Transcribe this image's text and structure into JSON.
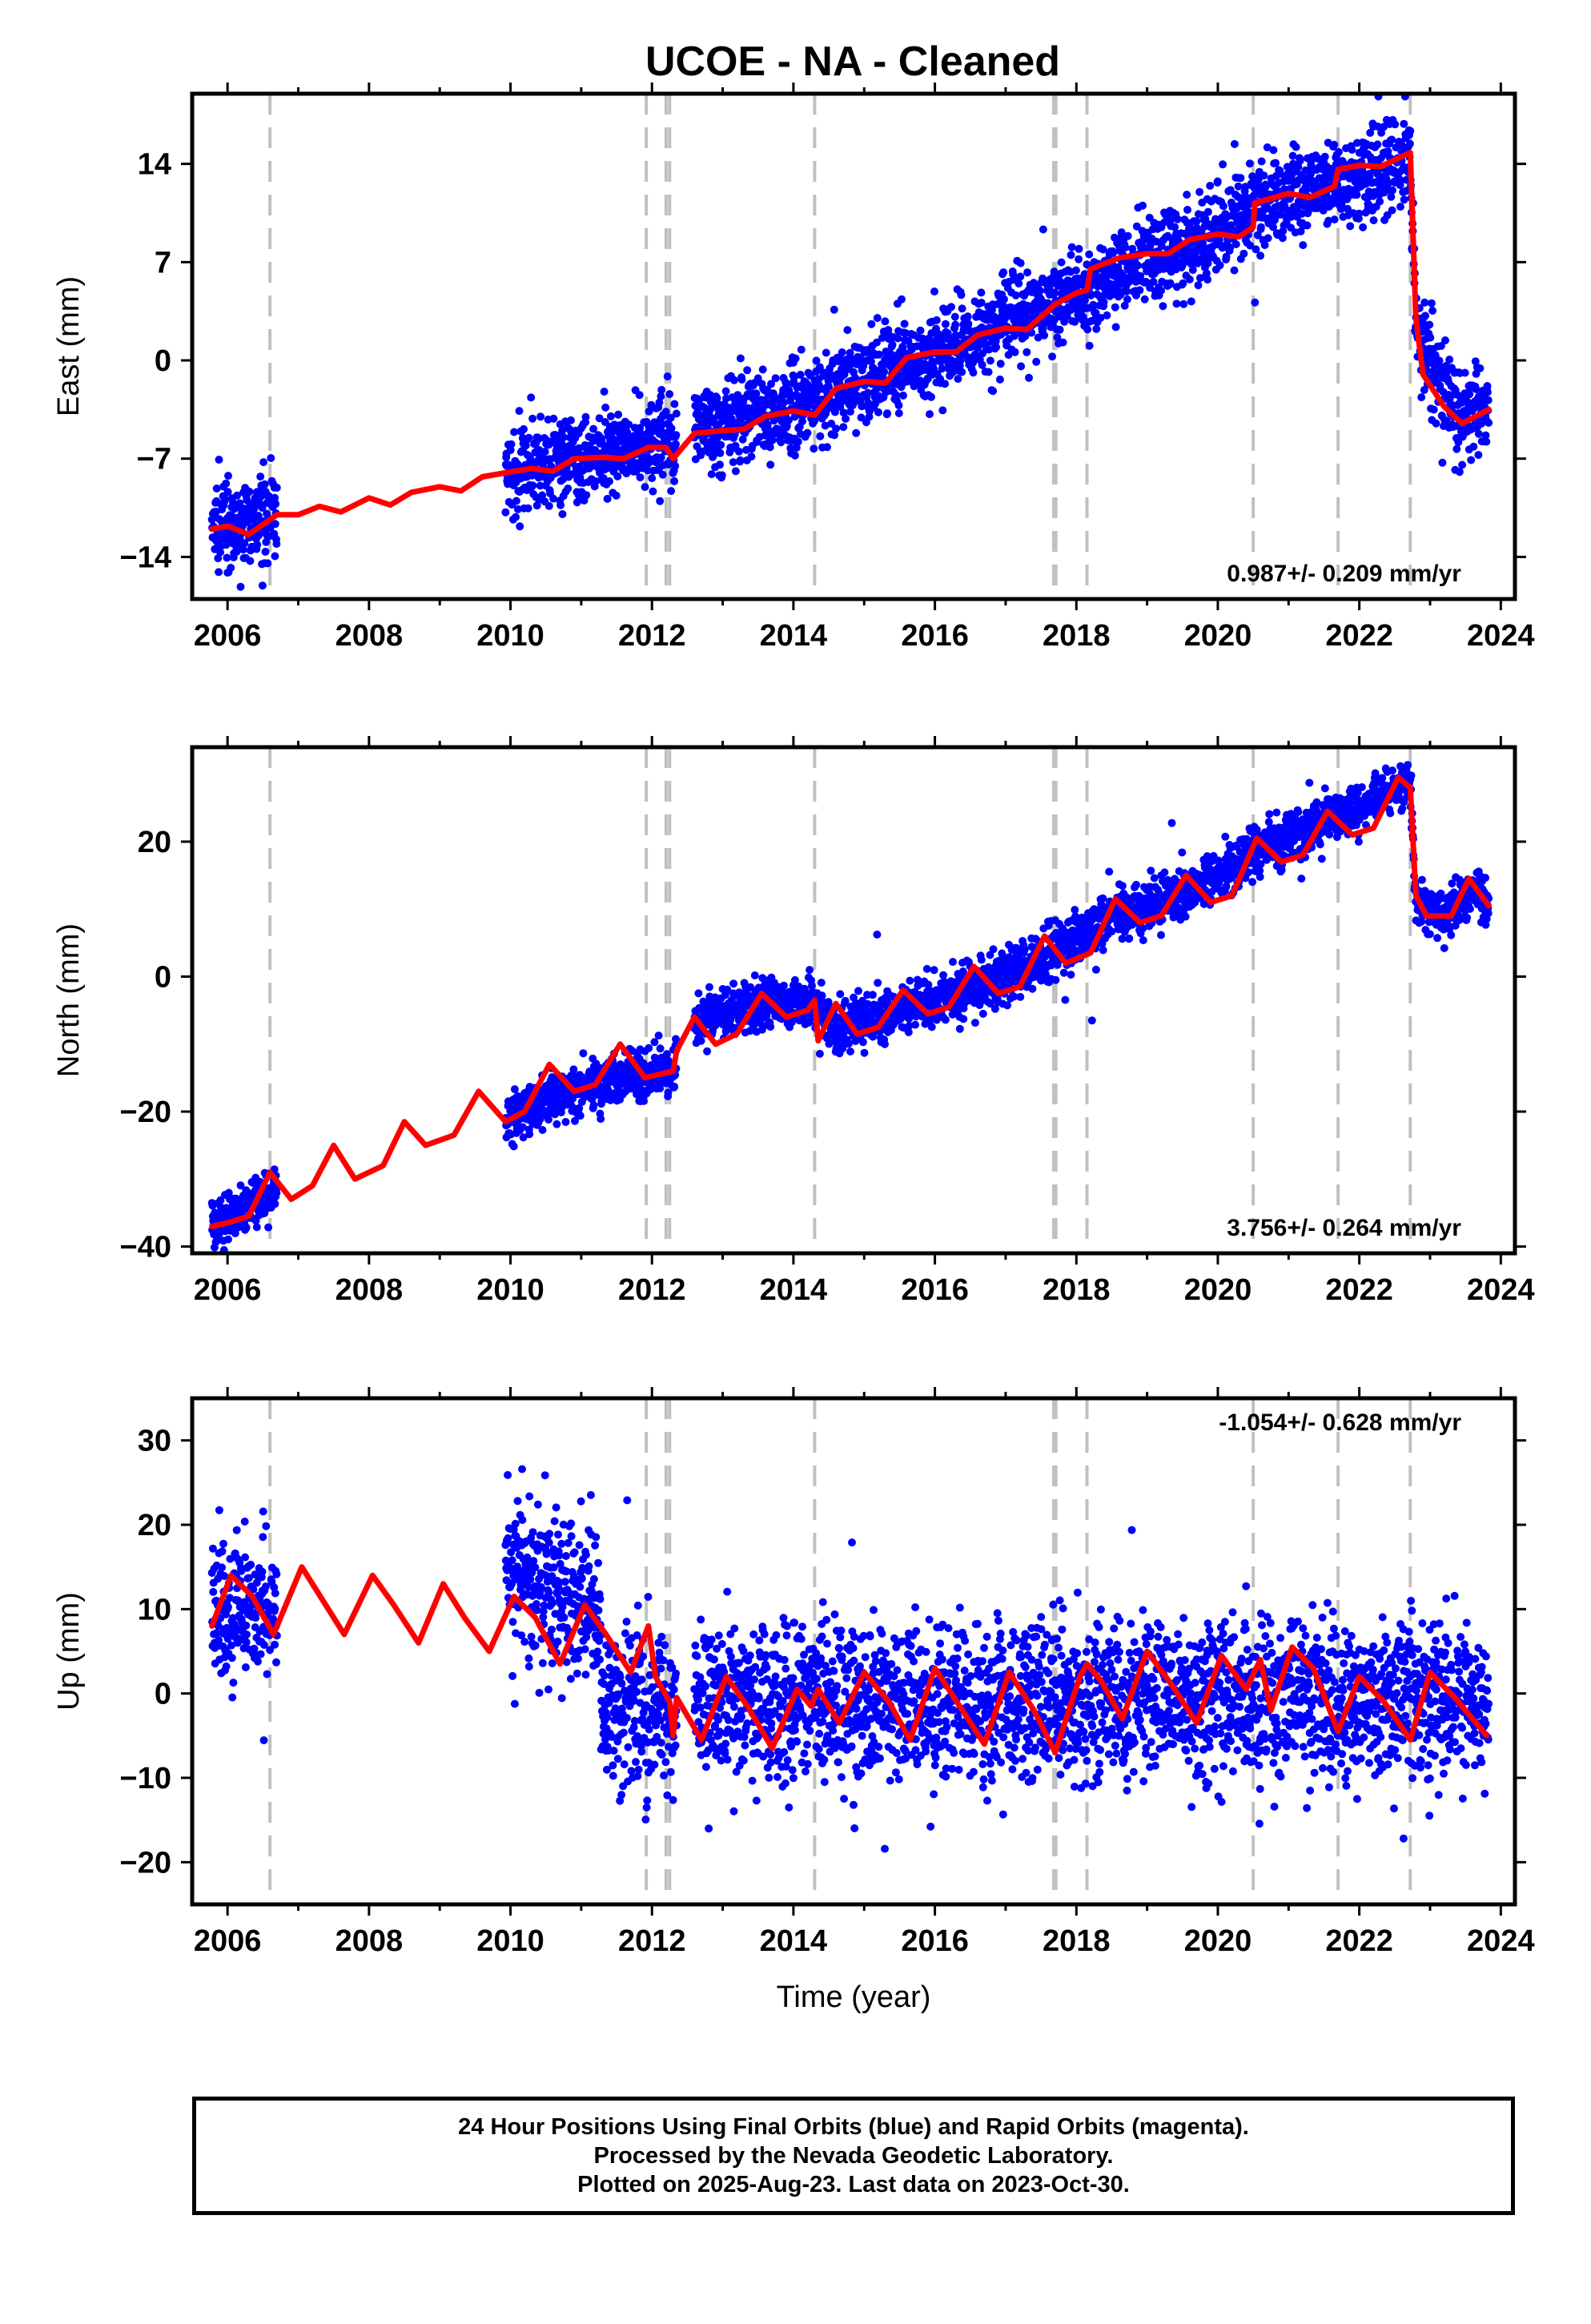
{
  "title": "UCOE  - NA - Cleaned",
  "chart_data": [
    {
      "type": "scatter",
      "panel": "east",
      "ylabel": "East (mm)",
      "xlabel": "",
      "xlim": [
        2005.5,
        2024.2
      ],
      "ylim": [
        -17,
        19
      ],
      "xticks": [
        2006,
        2008,
        2010,
        2012,
        2014,
        2016,
        2018,
        2020,
        2022,
        2024
      ],
      "yticks": [
        -14,
        -7,
        0,
        7,
        14
      ],
      "rate_label": "0.987+/- 0.209 mm/yr",
      "rate_position": "bottom-right",
      "series": [
        {
          "label": "Final Orbits (blue)",
          "color": "#0000ff",
          "style": "points",
          "segments": [
            [
              2005.78,
              2006.7
            ],
            [
              2009.93,
              2012.35
            ],
            [
              2012.6,
              2023.83
            ]
          ],
          "base_at": [
            [
              2005.78,
              -12
            ],
            [
              2006.6,
              -11
            ],
            [
              2009.93,
              -8
            ],
            [
              2012.0,
              -6
            ],
            [
              2012.6,
              -5
            ],
            [
              2014.0,
              -3.5
            ],
            [
              2016.0,
              0.5
            ],
            [
              2018.0,
              4.8
            ],
            [
              2020.0,
              9
            ],
            [
              2020.5,
              11
            ],
            [
              2022.0,
              13
            ],
            [
              2022.72,
              14.5
            ],
            [
              2022.8,
              2
            ],
            [
              2023.4,
              -4
            ],
            [
              2023.83,
              -3.5
            ]
          ],
          "noise_mm": 1.5
        },
        {
          "label": "Model fit",
          "color": "#ff0000",
          "style": "line",
          "points": [
            [
              2005.78,
              -12.0
            ],
            [
              2006.0,
              -11.8
            ],
            [
              2006.3,
              -12.4
            ],
            [
              2006.7,
              -11.0
            ],
            [
              2007.0,
              -11.0
            ],
            [
              2007.3,
              -10.4
            ],
            [
              2007.6,
              -10.8
            ],
            [
              2008.0,
              -9.8
            ],
            [
              2008.3,
              -10.3
            ],
            [
              2008.6,
              -9.4
            ],
            [
              2009.0,
              -9.0
            ],
            [
              2009.3,
              -9.3
            ],
            [
              2009.6,
              -8.3
            ],
            [
              2009.93,
              -8.0
            ],
            [
              2010.3,
              -7.7
            ],
            [
              2010.6,
              -7.9
            ],
            [
              2010.9,
              -7.0
            ],
            [
              2011.3,
              -6.9
            ],
            [
              2011.6,
              -7.0
            ],
            [
              2011.95,
              -6.2
            ],
            [
              2012.2,
              -6.2
            ],
            [
              2012.3,
              -7.0
            ],
            [
              2012.6,
              -5.2
            ],
            [
              2013.0,
              -5.0
            ],
            [
              2013.3,
              -4.9
            ],
            [
              2013.6,
              -4.0
            ],
            [
              2014.0,
              -3.6
            ],
            [
              2014.3,
              -3.9
            ],
            [
              2014.6,
              -2.0
            ],
            [
              2015.0,
              -1.5
            ],
            [
              2015.3,
              -1.6
            ],
            [
              2015.6,
              0.2
            ],
            [
              2016.0,
              0.6
            ],
            [
              2016.3,
              0.6
            ],
            [
              2016.6,
              1.8
            ],
            [
              2017.0,
              2.3
            ],
            [
              2017.3,
              2.2
            ],
            [
              2017.7,
              4.0
            ],
            [
              2018.0,
              4.8
            ],
            [
              2018.15,
              5.0
            ],
            [
              2018.2,
              6.5
            ],
            [
              2018.6,
              7.3
            ],
            [
              2019.0,
              7.6
            ],
            [
              2019.3,
              7.6
            ],
            [
              2019.6,
              8.6
            ],
            [
              2020.0,
              9.0
            ],
            [
              2020.3,
              8.8
            ],
            [
              2020.5,
              9.5
            ],
            [
              2020.52,
              11.2
            ],
            [
              2021.0,
              11.9
            ],
            [
              2021.3,
              11.6
            ],
            [
              2021.65,
              12.4
            ],
            [
              2021.7,
              13.6
            ],
            [
              2022.0,
              13.9
            ],
            [
              2022.3,
              13.8
            ],
            [
              2022.72,
              14.8
            ],
            [
              2022.8,
              3.0
            ],
            [
              2022.9,
              -1.0
            ],
            [
              2023.2,
              -3.3
            ],
            [
              2023.45,
              -4.5
            ],
            [
              2023.83,
              -3.5
            ]
          ]
        }
      ]
    },
    {
      "type": "scatter",
      "panel": "north",
      "ylabel": "North (mm)",
      "xlabel": "",
      "xlim": [
        2005.5,
        2024.2
      ],
      "ylim": [
        -41,
        34
      ],
      "xticks": [
        2006,
        2008,
        2010,
        2012,
        2014,
        2016,
        2018,
        2020,
        2022,
        2024
      ],
      "yticks": [
        -40,
        -20,
        0,
        20
      ],
      "rate_label": "3.756+/- 0.264 mm/yr",
      "rate_position": "bottom-right",
      "series": [
        {
          "label": "Final Orbits (blue)",
          "color": "#0000ff",
          "style": "points",
          "segments": [
            [
              2005.78,
              2006.7
            ],
            [
              2009.93,
              2012.35
            ],
            [
              2012.6,
              2023.83
            ]
          ],
          "base_at": [
            [
              2005.78,
              -37
            ],
            [
              2006.7,
              -32
            ],
            [
              2009.93,
              -21
            ],
            [
              2011.0,
              -16
            ],
            [
              2012.3,
              -14
            ],
            [
              2012.6,
              -7
            ],
            [
              2013.5,
              -4
            ],
            [
              2014.3,
              -4
            ],
            [
              2014.6,
              -8
            ],
            [
              2015.5,
              -5
            ],
            [
              2016.5,
              -2
            ],
            [
              2017.6,
              3
            ],
            [
              2018.5,
              9
            ],
            [
              2019.5,
              12
            ],
            [
              2020.5,
              18
            ],
            [
              2021.5,
              23
            ],
            [
              2022.72,
              29
            ],
            [
              2022.8,
              11
            ],
            [
              2023.2,
              9
            ],
            [
              2023.6,
              13
            ],
            [
              2023.83,
              10
            ]
          ],
          "noise_mm": 1.8
        },
        {
          "label": "Model fit",
          "color": "#ff0000",
          "style": "line",
          "points": [
            [
              2005.78,
              -37.0
            ],
            [
              2006.0,
              -36.5
            ],
            [
              2006.3,
              -35.5
            ],
            [
              2006.6,
              -29.0
            ],
            [
              2006.9,
              -33.0
            ],
            [
              2007.2,
              -31.0
            ],
            [
              2007.5,
              -25.0
            ],
            [
              2007.8,
              -30.0
            ],
            [
              2008.2,
              -28.0
            ],
            [
              2008.5,
              -21.5
            ],
            [
              2008.8,
              -25.0
            ],
            [
              2009.2,
              -23.5
            ],
            [
              2009.55,
              -17.0
            ],
            [
              2009.93,
              -21.5
            ],
            [
              2010.2,
              -20.0
            ],
            [
              2010.55,
              -13.0
            ],
            [
              2010.9,
              -17.0
            ],
            [
              2011.2,
              -16.0
            ],
            [
              2011.55,
              -10.0
            ],
            [
              2011.9,
              -15.0
            ],
            [
              2012.3,
              -14.0
            ],
            [
              2012.35,
              -11.0
            ],
            [
              2012.6,
              -6.0
            ],
            [
              2012.9,
              -10.0
            ],
            [
              2013.2,
              -8.5
            ],
            [
              2013.55,
              -2.5
            ],
            [
              2013.9,
              -6.0
            ],
            [
              2014.2,
              -5.0
            ],
            [
              2014.3,
              -3.5
            ],
            [
              2014.35,
              -9.5
            ],
            [
              2014.6,
              -4.0
            ],
            [
              2014.9,
              -8.5
            ],
            [
              2015.2,
              -7.5
            ],
            [
              2015.55,
              -2.0
            ],
            [
              2015.9,
              -5.5
            ],
            [
              2016.2,
              -4.5
            ],
            [
              2016.55,
              1.5
            ],
            [
              2016.9,
              -2.5
            ],
            [
              2017.2,
              -1.5
            ],
            [
              2017.55,
              6.0
            ],
            [
              2017.85,
              2.0
            ],
            [
              2018.2,
              3.5
            ],
            [
              2018.55,
              11.5
            ],
            [
              2018.9,
              8.0
            ],
            [
              2019.2,
              9.0
            ],
            [
              2019.55,
              15.0
            ],
            [
              2019.9,
              11.0
            ],
            [
              2020.2,
              12.0
            ],
            [
              2020.55,
              20.5
            ],
            [
              2020.9,
              17.0
            ],
            [
              2021.2,
              18.0
            ],
            [
              2021.55,
              24.5
            ],
            [
              2021.9,
              21.0
            ],
            [
              2022.2,
              22.0
            ],
            [
              2022.55,
              29.5
            ],
            [
              2022.72,
              28.0
            ],
            [
              2022.8,
              12.0
            ],
            [
              2022.95,
              9.0
            ],
            [
              2023.3,
              9.0
            ],
            [
              2023.55,
              14.5
            ],
            [
              2023.83,
              10.5
            ]
          ]
        }
      ]
    },
    {
      "type": "scatter",
      "panel": "up",
      "ylabel": "Up (mm)",
      "xlabel": "Time (year)",
      "xlim": [
        2005.5,
        2024.2
      ],
      "ylim": [
        -25,
        35
      ],
      "xticks": [
        2006,
        2008,
        2010,
        2012,
        2014,
        2016,
        2018,
        2020,
        2022,
        2024
      ],
      "yticks": [
        -20,
        -10,
        0,
        10,
        20,
        30
      ],
      "rate_label": "-1.054+/- 0.628 mm/yr",
      "rate_position": "top-right",
      "series": [
        {
          "label": "Final Orbits (blue)",
          "color": "#0000ff",
          "style": "points",
          "segments": [
            [
              2005.78,
              2006.7
            ],
            [
              2009.93,
              2011.2
            ],
            [
              2011.2,
              2012.35
            ],
            [
              2012.6,
              2023.83
            ]
          ],
          "base_at": [
            [
              2005.78,
              10
            ],
            [
              2006.7,
              10
            ],
            [
              2009.93,
              15
            ],
            [
              2011.2,
              10
            ],
            [
              2011.3,
              -2
            ],
            [
              2012.35,
              -2
            ],
            [
              2012.6,
              -1
            ],
            [
              2023.83,
              -1
            ]
          ],
          "noise_mm": 4.5
        },
        {
          "label": "Model fit",
          "color": "#ff0000",
          "style": "line",
          "points": [
            [
              2005.78,
              8.0
            ],
            [
              2006.05,
              14.0
            ],
            [
              2006.35,
              11.5
            ],
            [
              2006.65,
              7.0
            ],
            [
              2007.05,
              15.0
            ],
            [
              2007.35,
              11.0
            ],
            [
              2007.65,
              7.0
            ],
            [
              2008.05,
              14.0
            ],
            [
              2008.35,
              10.5
            ],
            [
              2008.7,
              6.0
            ],
            [
              2009.05,
              13.0
            ],
            [
              2009.35,
              9.0
            ],
            [
              2009.7,
              5.0
            ],
            [
              2010.05,
              11.5
            ],
            [
              2010.35,
              9.0
            ],
            [
              2010.7,
              3.5
            ],
            [
              2011.05,
              10.5
            ],
            [
              2011.35,
              7.0
            ],
            [
              2011.7,
              2.5
            ],
            [
              2011.95,
              8.0
            ],
            [
              2012.05,
              2.0
            ],
            [
              2012.25,
              -1.0
            ],
            [
              2012.3,
              -5.0
            ],
            [
              2012.35,
              -0.5
            ],
            [
              2012.7,
              -5.5
            ],
            [
              2013.05,
              2.0
            ],
            [
              2013.35,
              -1.5
            ],
            [
              2013.7,
              -6.5
            ],
            [
              2014.05,
              0.5
            ],
            [
              2014.25,
              -1.5
            ],
            [
              2014.35,
              0.5
            ],
            [
              2014.65,
              -3.5
            ],
            [
              2015.0,
              2.5
            ],
            [
              2015.35,
              -1.0
            ],
            [
              2015.65,
              -5.5
            ],
            [
              2016.0,
              3.0
            ],
            [
              2016.35,
              -1.5
            ],
            [
              2016.7,
              -6.0
            ],
            [
              2017.05,
              2.5
            ],
            [
              2017.4,
              -2.0
            ],
            [
              2017.7,
              -7.0
            ],
            [
              2018.05,
              2.0
            ],
            [
              2018.15,
              3.5
            ],
            [
              2018.35,
              1.5
            ],
            [
              2018.65,
              -3.0
            ],
            [
              2019.0,
              5.0
            ],
            [
              2019.35,
              1.0
            ],
            [
              2019.7,
              -3.5
            ],
            [
              2020.05,
              4.5
            ],
            [
              2020.4,
              0.5
            ],
            [
              2020.6,
              4.0
            ],
            [
              2020.75,
              -2.0
            ],
            [
              2021.05,
              5.5
            ],
            [
              2021.35,
              3.0
            ],
            [
              2021.7,
              -4.5
            ],
            [
              2022.0,
              2.0
            ],
            [
              2022.35,
              -1.0
            ],
            [
              2022.72,
              -5.5
            ],
            [
              2023.0,
              2.5
            ],
            [
              2023.35,
              -0.5
            ],
            [
              2023.8,
              -5.0
            ]
          ]
        }
      ]
    }
  ],
  "event_lines": [
    2006.6,
    2011.92,
    2012.2,
    2012.25,
    2014.3,
    2017.68,
    2017.71,
    2018.15,
    2020.5,
    2021.7,
    2022.72
  ],
  "footer": {
    "line1": "24 Hour Positions Using Final Orbits (blue) and Rapid Orbits (magenta).",
    "line2": "Processed by the Nevada Geodetic Laboratory.",
    "line3": "Plotted on 2025-Aug-23. Last data on 2023-Oct-30."
  }
}
